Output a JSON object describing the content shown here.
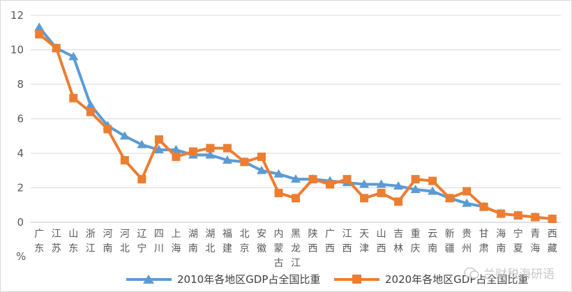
{
  "chart_data": {
    "type": "line",
    "categories": [
      [
        "广",
        "东"
      ],
      [
        "江",
        "苏"
      ],
      [
        "山",
        "东"
      ],
      [
        "浙",
        "江"
      ],
      [
        "河",
        "南"
      ],
      [
        "河",
        "北"
      ],
      [
        "辽",
        "宁"
      ],
      [
        "四",
        "川"
      ],
      [
        "上",
        "海"
      ],
      [
        "湖",
        "南"
      ],
      [
        "湖",
        "北"
      ],
      [
        "福",
        "建"
      ],
      [
        "北",
        "京"
      ],
      [
        "安",
        "徽"
      ],
      [
        "内",
        "蒙",
        "古"
      ],
      [
        "黑",
        "龙",
        "江"
      ],
      [
        "陕",
        "西"
      ],
      [
        "广",
        "西"
      ],
      [
        "江",
        "西"
      ],
      [
        "天",
        "津"
      ],
      [
        "山",
        "西"
      ],
      [
        "吉",
        "林"
      ],
      [
        "重",
        "庆"
      ],
      [
        "云",
        "南"
      ],
      [
        "新",
        "疆"
      ],
      [
        "贵",
        "州"
      ],
      [
        "甘",
        "肃"
      ],
      [
        "海",
        "南"
      ],
      [
        "宁",
        "夏"
      ],
      [
        "青",
        "海"
      ],
      [
        "西",
        "藏"
      ]
    ],
    "series": [
      {
        "name": "2010年各地区GDP占全国比重",
        "color": "#5b9bd5",
        "marker": "triangle",
        "values": [
          11.3,
          10.1,
          9.6,
          6.8,
          5.6,
          5.0,
          4.5,
          4.2,
          4.2,
          3.9,
          3.9,
          3.6,
          3.5,
          3.0,
          2.8,
          2.5,
          2.5,
          2.4,
          2.3,
          2.2,
          2.2,
          2.1,
          1.9,
          1.8,
          1.4,
          1.1,
          0.9,
          0.5,
          0.4,
          0.3,
          0.2
        ]
      },
      {
        "name": "2020年各地区GDP占全国比重",
        "color": "#ed7d31",
        "marker": "square",
        "values": [
          10.9,
          10.1,
          7.2,
          6.4,
          5.4,
          3.6,
          2.5,
          4.8,
          3.8,
          4.1,
          4.3,
          4.3,
          3.5,
          3.8,
          1.7,
          1.4,
          2.5,
          2.2,
          2.5,
          1.4,
          1.7,
          1.2,
          2.5,
          2.4,
          1.4,
          1.8,
          0.9,
          0.5,
          0.4,
          0.3,
          0.2
        ]
      }
    ],
    "ylim": [
      0,
      12
    ],
    "yticks": [
      0,
      2,
      4,
      6,
      8,
      10,
      12
    ],
    "ylabel": "%",
    "grid": true,
    "legend_position": "bottom-left"
  },
  "watermark": "兰财税海研语"
}
